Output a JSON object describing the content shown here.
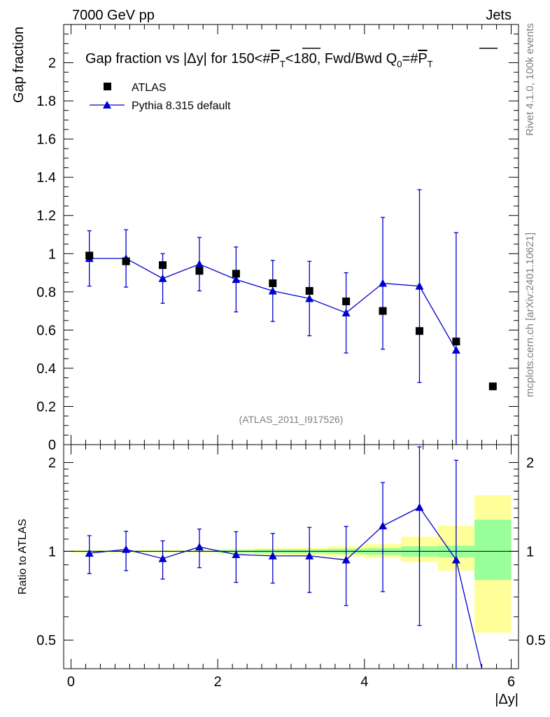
{
  "header": {
    "energy": "7000 GeV pp",
    "category": "Jets"
  },
  "title": {
    "prefix": "Gap fraction vs |",
    "dy": "Δy",
    "mid": "| for 150<#",
    "pt": "P",
    "t_sub": "T",
    "mid2": "<180, Fwd/Bwd Q",
    "q_sub": "0",
    "eq": "=#",
    "pt2": "P",
    "t_sub2": "T"
  },
  "side": {
    "rivet": "Rivet 4.1.0,  100k events",
    "mcplots": "mcplots.cern.ch [arXiv:2401.10621]"
  },
  "watermark": "(ATLAS_2011_I917526)",
  "colors": {
    "data": "#000000",
    "mc": "#0000cc",
    "band_green": "#99ff99",
    "band_yellow": "#ffff99"
  },
  "chart_data": [
    {
      "type": "scatter",
      "name": "main",
      "ylabel": "Gap fraction",
      "xlim": [
        -0.1,
        6.1
      ],
      "ylim": [
        0,
        2.2
      ],
      "yticks": [
        0,
        0.2,
        0.4,
        0.6,
        0.8,
        1,
        1.2,
        1.4,
        1.6,
        1.8,
        2
      ],
      "ytick_labels": [
        "0",
        "0.2",
        "0.4",
        "0.6",
        "0.8",
        "1",
        "1.2",
        "1.4",
        "1.6",
        "1.8",
        "2"
      ],
      "legend": [
        {
          "label": "ATLAS",
          "marker": "square"
        },
        {
          "label": "Pythia 8.315 default",
          "marker": "triangle"
        }
      ],
      "series": [
        {
          "name": "ATLAS",
          "x": [
            0.25,
            0.75,
            1.25,
            1.75,
            2.25,
            2.75,
            3.25,
            3.75,
            4.25,
            4.75,
            5.25,
            5.75
          ],
          "y": [
            0.99,
            0.96,
            0.94,
            0.91,
            0.895,
            0.845,
            0.805,
            0.75,
            0.7,
            0.595,
            0.54,
            0.305
          ]
        },
        {
          "name": "Pythia 8.315 default",
          "x": [
            0.25,
            0.75,
            1.25,
            1.75,
            2.25,
            2.75,
            3.25,
            3.75,
            4.25,
            4.75,
            5.25
          ],
          "y": [
            0.975,
            0.975,
            0.87,
            0.945,
            0.865,
            0.805,
            0.765,
            0.69,
            0.845,
            0.83,
            0.495
          ],
          "err": [
            0.145,
            0.15,
            0.13,
            0.14,
            0.17,
            0.16,
            0.195,
            0.21,
            0.345,
            0.505,
            0.615
          ]
        }
      ]
    },
    {
      "type": "scatter",
      "name": "ratio",
      "ylabel": "Ratio to ATLAS",
      "xlabel": "|Δy|",
      "xlim": [
        -0.1,
        6.1
      ],
      "ylim": [
        0.4,
        2.3
      ],
      "yscale": "log",
      "xticks": [
        0,
        2,
        4,
        6
      ],
      "xtick_labels": [
        "0",
        "2",
        "4",
        "6"
      ],
      "yticks": [
        0.5,
        1,
        2
      ],
      "ytick_labels": [
        "0.5",
        "1",
        "2"
      ],
      "bands": {
        "x_edges": [
          0,
          0.5,
          1,
          1.5,
          2,
          2.5,
          3,
          3.5,
          4,
          4.5,
          5,
          5.5,
          6
        ],
        "green_low": [
          0.995,
          0.995,
          0.995,
          0.995,
          0.99,
          0.985,
          0.985,
          0.98,
          0.975,
          0.96,
          0.955,
          0.8
        ],
        "green_high": [
          1.005,
          1.005,
          1.005,
          1.005,
          1.01,
          1.015,
          1.015,
          1.02,
          1.025,
          1.04,
          1.045,
          1.28
        ],
        "yellow_low": [
          0.99,
          0.99,
          0.99,
          0.99,
          0.98,
          0.975,
          0.97,
          0.96,
          0.95,
          0.92,
          0.86,
          0.53
        ],
        "yellow_high": [
          1.01,
          1.01,
          1.01,
          1.01,
          1.02,
          1.025,
          1.03,
          1.04,
          1.06,
          1.12,
          1.22,
          1.55
        ]
      },
      "series": [
        {
          "name": "Pythia 8.315 default",
          "x": [
            0.25,
            0.75,
            1.25,
            1.75,
            2.25,
            2.75,
            3.25,
            3.75,
            4.25,
            4.75,
            5.25,
            5.6
          ],
          "y": [
            0.985,
            1.015,
            0.945,
            1.035,
            0.975,
            0.965,
            0.965,
            0.935,
            1.22,
            1.41,
            0.935,
            0.4
          ],
          "err_low": [
            0.145,
            0.155,
            0.14,
            0.155,
            0.19,
            0.185,
            0.24,
            0.28,
            0.49,
            0.85,
            0.93,
            0
          ],
          "err_high": [
            0.145,
            0.155,
            0.14,
            0.155,
            0.19,
            0.185,
            0.24,
            0.28,
            0.49,
            0.85,
            1.1,
            0
          ]
        }
      ]
    }
  ]
}
